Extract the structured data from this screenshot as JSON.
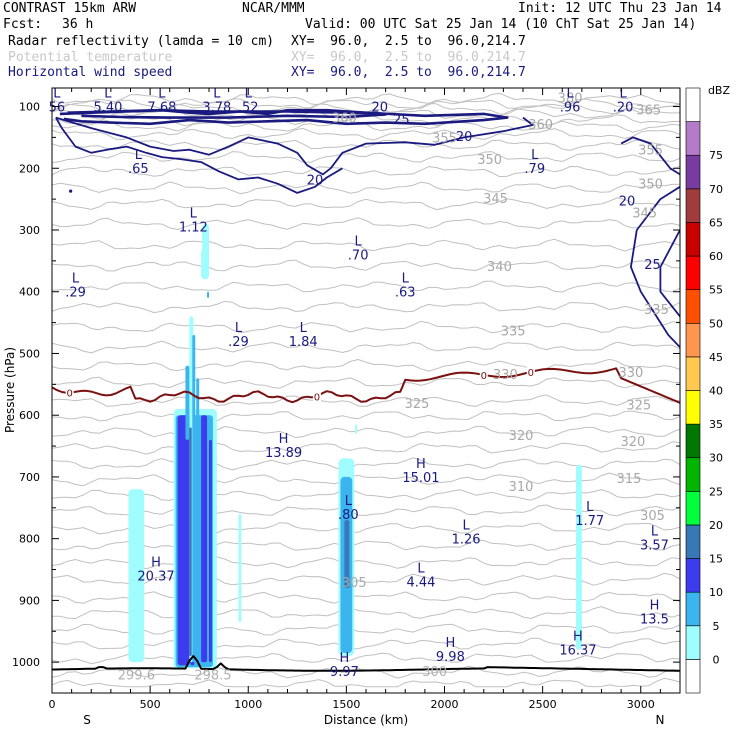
{
  "header": {
    "model": "CONTRAST 15km ARW",
    "center": "NCAR/MMM",
    "init": "Init: 12 UTC Thu 23 Jan 14",
    "fcst_label": "Fcst:",
    "fcst_value": "36 h",
    "valid": "Valid: 00 UTC Sat 25 Jan 14 (10 ChT Sat 25 Jan 14)"
  },
  "fields": [
    {
      "name": "Radar reflectivity (lamda = 10 cm)",
      "xy": "XY=  96.0,  2.5 to  96.0,214.7",
      "color": "#000000"
    },
    {
      "name": "Potential temperature",
      "xy": "XY=  96.0,  2.5 to  96.0,214.7",
      "color": "#c8c8c8"
    },
    {
      "name": "Horizontal wind speed",
      "xy": "XY=  96.0,  2.5 to  96.0,214.7",
      "color": "#1a1a80"
    }
  ],
  "chart_data": {
    "type": "cross-section",
    "xlabel": "Distance (km)",
    "ylabel": "Pressure (hPa)",
    "xlim": [
      0,
      3200
    ],
    "ylim": [
      1050,
      70
    ],
    "x_ticks": [
      0,
      500,
      1000,
      1500,
      2000,
      2500,
      3000
    ],
    "y_ticks": [
      100,
      200,
      300,
      400,
      500,
      600,
      700,
      800,
      900,
      1000
    ],
    "left_end": "S",
    "right_end": "N",
    "colorbar": {
      "unit": "dBZ",
      "levels": [
        0,
        5,
        10,
        15,
        20,
        25,
        30,
        35,
        40,
        45,
        50,
        55,
        60,
        65,
        70,
        75
      ],
      "colors": [
        "#ffffff",
        "#9ffcff",
        "#3cb4ee",
        "#3c3cee",
        "#3878b4",
        "#00ff3c",
        "#00b400",
        "#007800",
        "#ffff00",
        "#ffc850",
        "#ff9650",
        "#ff5000",
        "#ff0000",
        "#c80000",
        "#a03c3c",
        "#783ca0",
        "#b47cc8",
        "#ffffff"
      ]
    },
    "extrema": [
      {
        "t": "L",
        "v": "56",
        "x": 25,
        "p": 90
      },
      {
        "t": "L",
        "v": "5.40",
        "x": 285,
        "p": 90
      },
      {
        "t": "L",
        "v": "7.68",
        "x": 560,
        "p": 90
      },
      {
        "t": "L",
        "v": "3.78",
        "x": 840,
        "p": 90
      },
      {
        "t": "L",
        "v": ".52",
        "x": 1000,
        "p": 90
      },
      {
        "t": "L",
        "v": ".96",
        "x": 2640,
        "p": 90
      },
      {
        "t": "L",
        "v": ".20",
        "x": 2910,
        "p": 90
      },
      {
        "t": "L",
        "v": ".65",
        "x": 440,
        "p": 190
      },
      {
        "t": "L",
        "v": ".79",
        "x": 2460,
        "p": 190
      },
      {
        "t": "L",
        "v": "1.12",
        "x": 720,
        "p": 285
      },
      {
        "t": "L",
        "v": ".70",
        "x": 1560,
        "p": 330
      },
      {
        "t": "L",
        "v": ".29",
        "x": 120,
        "p": 390
      },
      {
        "t": "L",
        "v": ".63",
        "x": 1800,
        "p": 390
      },
      {
        "t": "L",
        "v": ".29",
        "x": 950,
        "p": 470
      },
      {
        "t": "L",
        "v": "1.84",
        "x": 1280,
        "p": 470
      },
      {
        "t": "H",
        "v": "13.89",
        "x": 1180,
        "p": 650
      },
      {
        "t": "H",
        "v": "15.01",
        "x": 1880,
        "p": 690
      },
      {
        "t": "L",
        "v": ".80",
        "x": 1510,
        "p": 750
      },
      {
        "t": "L",
        "v": "1.26",
        "x": 2110,
        "p": 790
      },
      {
        "t": "L",
        "v": "1.77",
        "x": 2740,
        "p": 760
      },
      {
        "t": "L",
        "v": "3.57",
        "x": 3070,
        "p": 800
      },
      {
        "t": "H",
        "v": "20.37",
        "x": 530,
        "p": 850
      },
      {
        "t": "L",
        "v": "4.44",
        "x": 1880,
        "p": 860
      },
      {
        "t": "H",
        "v": "13.5",
        "x": 3070,
        "p": 920
      },
      {
        "t": "H",
        "v": "9.98",
        "x": 2030,
        "p": 980
      },
      {
        "t": "H",
        "v": "16.37",
        "x": 2680,
        "p": 970
      },
      {
        "t": "H",
        "v": "9.97",
        "x": 1490,
        "p": 1005
      },
      {
        "t": "L",
        "v": "299.6",
        "x": 430,
        "p": 1010
      },
      {
        "t": "L",
        "v": "298.5",
        "x": 820,
        "p": 1010
      },
      {
        "t": "L",
        "v": "300",
        "x": 1950,
        "p": 1005
      }
    ],
    "theta_labels": [
      {
        "v": "380",
        "x": 2640,
        "p": 85
      },
      {
        "v": "365",
        "x": 3040,
        "p": 105
      },
      {
        "v": "360",
        "x": 1490,
        "p": 118
      },
      {
        "v": "360",
        "x": 2490,
        "p": 128
      },
      {
        "v": "355",
        "x": 2000,
        "p": 150
      },
      {
        "v": "355",
        "x": 3050,
        "p": 170
      },
      {
        "v": "350",
        "x": 2230,
        "p": 185
      },
      {
        "v": "350",
        "x": 3050,
        "p": 225
      },
      {
        "v": "345",
        "x": 2260,
        "p": 248
      },
      {
        "v": "345",
        "x": 3020,
        "p": 272
      },
      {
        "v": "340",
        "x": 2280,
        "p": 358
      },
      {
        "v": "335",
        "x": 2350,
        "p": 463
      },
      {
        "v": "335",
        "x": 3080,
        "p": 428
      },
      {
        "v": "330",
        "x": 2310,
        "p": 533
      },
      {
        "v": "330",
        "x": 2950,
        "p": 530
      },
      {
        "v": "325",
        "x": 1860,
        "p": 580
      },
      {
        "v": "325",
        "x": 2990,
        "p": 583
      },
      {
        "v": "320",
        "x": 2390,
        "p": 632
      },
      {
        "v": "320",
        "x": 2960,
        "p": 642
      },
      {
        "v": "315",
        "x": 2940,
        "p": 702
      },
      {
        "v": "310",
        "x": 2390,
        "p": 715
      },
      {
        "v": "305",
        "x": 3060,
        "p": 762
      },
      {
        "v": "305",
        "x": 1540,
        "p": 870
      }
    ],
    "wind_labels": [
      {
        "v": "20",
        "x": 1670,
        "p": 100
      },
      {
        "v": "25",
        "x": 1780,
        "p": 120
      },
      {
        "v": "20",
        "x": 2100,
        "p": 148
      },
      {
        "v": "20",
        "x": 1340,
        "p": 218
      },
      {
        "v": "20",
        "x": 2930,
        "p": 252
      },
      {
        "v": "25",
        "x": 3060,
        "p": 355
      }
    ],
    "freezing_label": "0",
    "freezing_label_x": [
      90,
      1350,
      2200,
      2440
    ]
  }
}
